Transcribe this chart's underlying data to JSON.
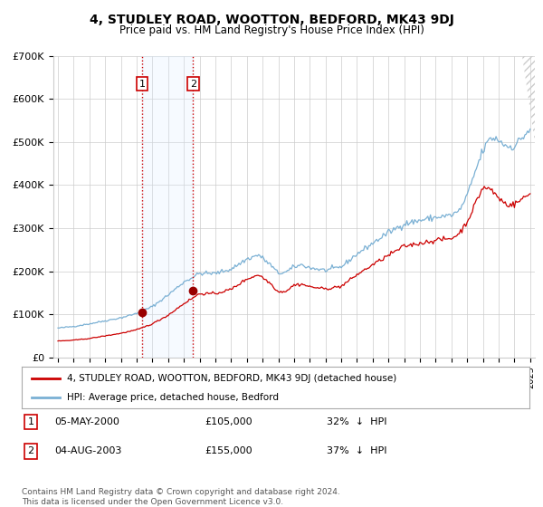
{
  "title": "4, STUDLEY ROAD, WOOTTON, BEDFORD, MK43 9DJ",
  "subtitle": "Price paid vs. HM Land Registry's House Price Index (HPI)",
  "legend_property": "4, STUDLEY ROAD, WOOTTON, BEDFORD, MK43 9DJ (detached house)",
  "legend_hpi": "HPI: Average price, detached house, Bedford",
  "footer": "Contains HM Land Registry data © Crown copyright and database right 2024.\nThis data is licensed under the Open Government Licence v3.0.",
  "sales": [
    {
      "label": "1",
      "date": "05-MAY-2000",
      "price": 105000,
      "pct": "32%",
      "dir": "↓",
      "year": 2000.35
    },
    {
      "label": "2",
      "date": "04-AUG-2003",
      "price": 155000,
      "pct": "37%",
      "dir": "↓",
      "year": 2003.59
    }
  ],
  "property_color": "#cc0000",
  "hpi_color": "#7ab0d4",
  "sale_marker_color": "#990000",
  "vline_color": "#cc0000",
  "shaded_color": "#ddeeff",
  "ylim": [
    0,
    700000
  ],
  "yticks": [
    0,
    100000,
    200000,
    300000,
    400000,
    500000,
    600000,
    700000
  ],
  "ytick_labels": [
    "£0",
    "£100K",
    "£200K",
    "£300K",
    "£400K",
    "£500K",
    "£600K",
    "£700K"
  ],
  "xlim_start": 1994.7,
  "xlim_end": 2025.3,
  "background_color": "#ffffff",
  "grid_color": "#cccccc"
}
